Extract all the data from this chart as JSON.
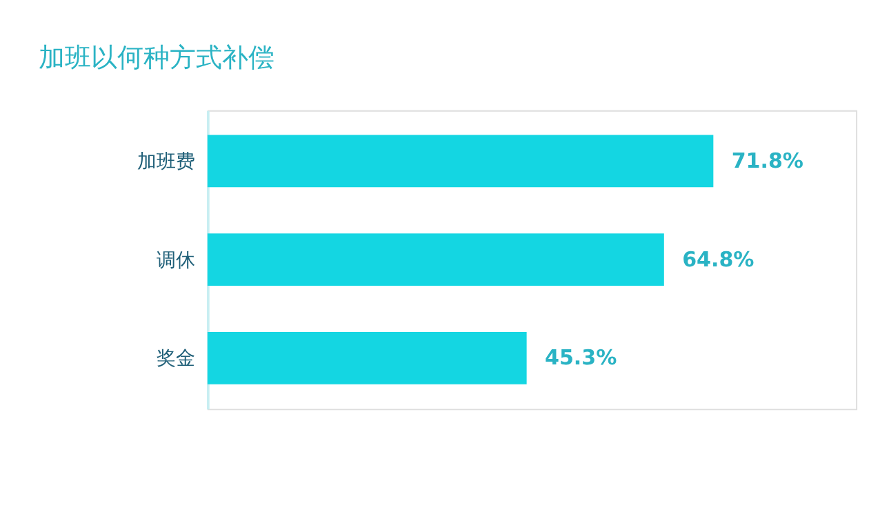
{
  "chart_data": {
    "type": "bar",
    "orientation": "horizontal",
    "title": "加班以何种方式补偿",
    "categories": [
      "加班费",
      "调休",
      "奖金"
    ],
    "values": [
      71.8,
      64.8,
      45.3
    ],
    "value_labels": [
      "71.8%",
      "64.8%",
      "45.3%"
    ],
    "color": "#14d6e2"
  }
}
